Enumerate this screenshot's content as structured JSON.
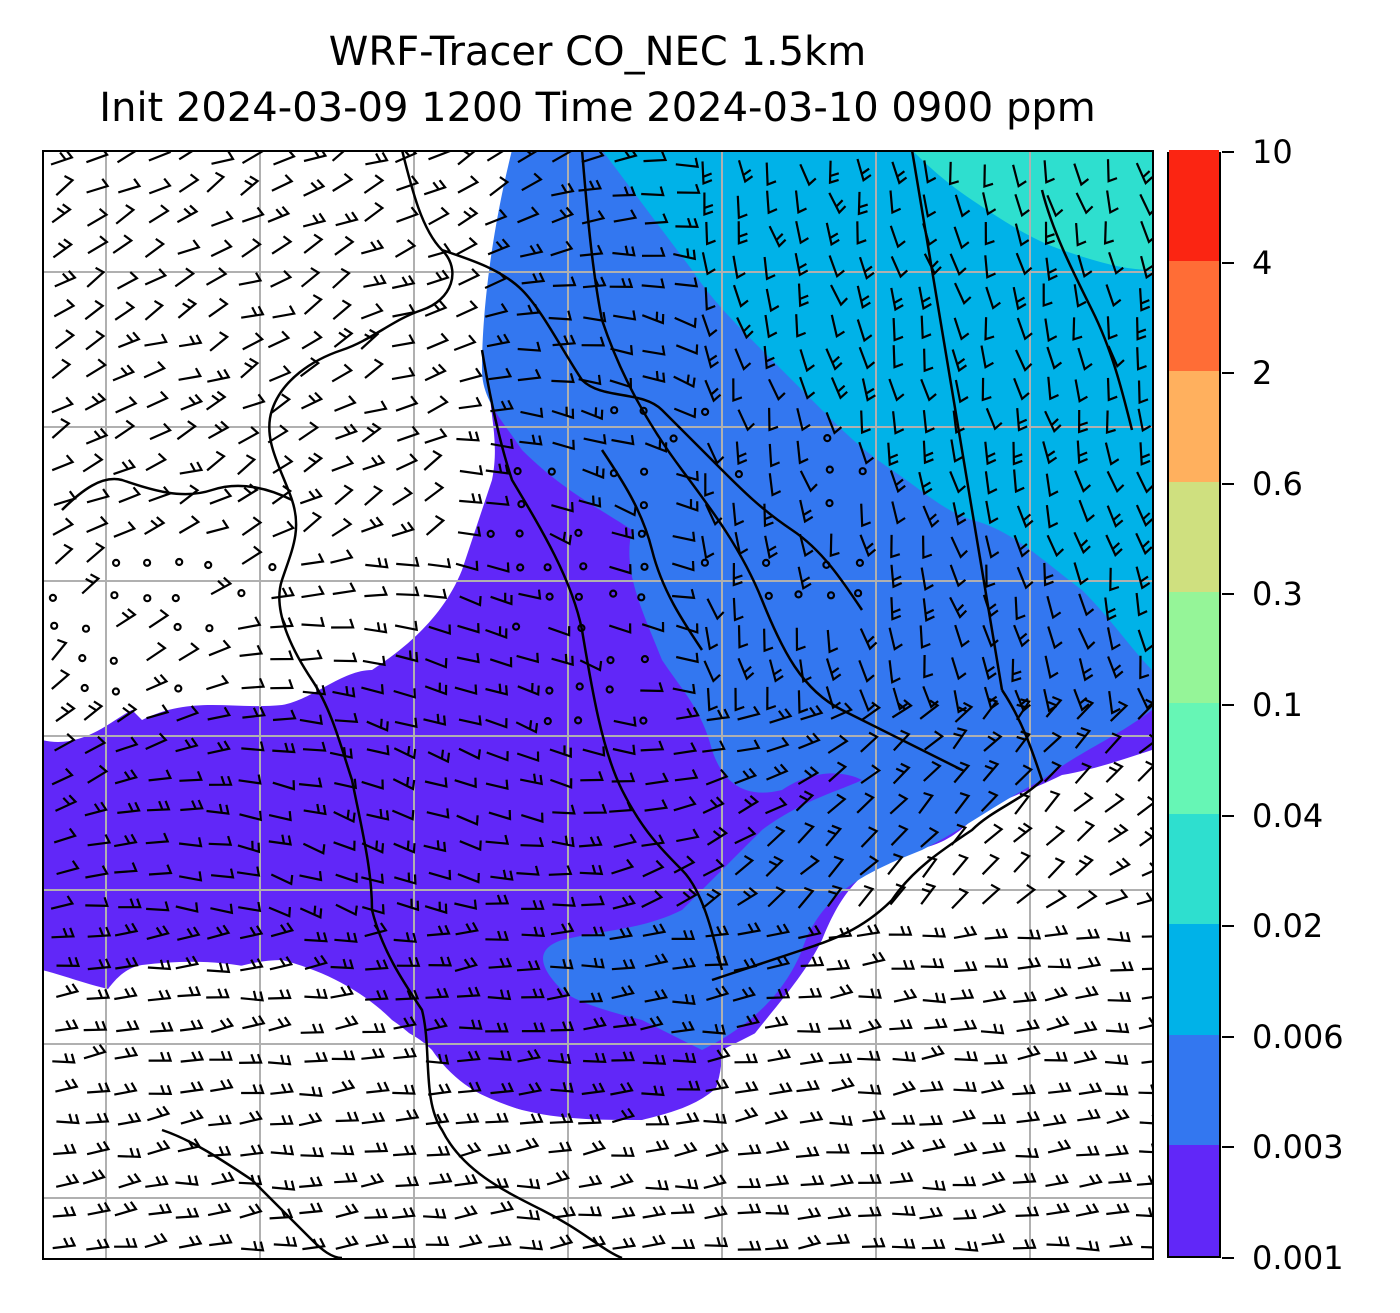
{
  "title": {
    "line1": "WRF-Tracer CO_NEC 1.5km",
    "line2": "Init 2024-03-09 1200 Time 2024-03-10 0900 ppm"
  },
  "colorbar": {
    "labels": [
      "0.001",
      "0.003",
      "0.006",
      "0.02",
      "0.04",
      "0.1",
      "0.3",
      "0.6",
      "2",
      "4",
      "10"
    ],
    "colors": [
      "#6127f8",
      "#3377f0",
      "#00b2e8",
      "#2edfcf",
      "#66f6b5",
      "#95f598",
      "#cfe07f",
      "#ffb05e",
      "#ff6d36",
      "#fb2512"
    ]
  },
  "map": {
    "background": "#ffffff",
    "gridline_color": "#b0b0b0",
    "coastline_color": "#000000",
    "barb_color": "#000000"
  }
}
